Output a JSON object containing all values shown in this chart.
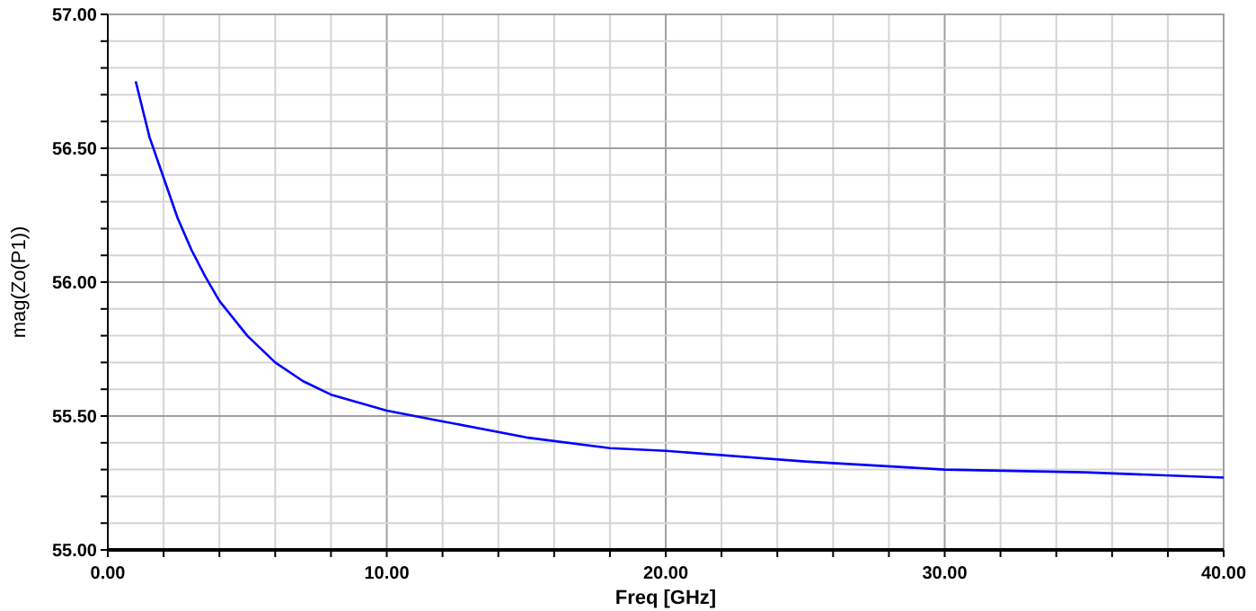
{
  "chart_data": {
    "type": "line",
    "xlabel": "Freq [GHz]",
    "ylabel": "mag(Zo(P1))",
    "x": [
      1,
      1.5,
      2,
      2.5,
      3,
      3.5,
      4,
      5,
      6,
      7,
      8,
      10,
      12,
      15,
      18,
      20,
      25,
      30,
      35,
      40
    ],
    "series": [
      {
        "color": "#0000ff",
        "values": [
          56.75,
          56.54,
          56.39,
          56.24,
          56.12,
          56.02,
          55.93,
          55.8,
          55.7,
          55.63,
          55.58,
          55.52,
          55.48,
          55.42,
          55.38,
          55.37,
          55.33,
          55.3,
          55.29,
          55.27
        ]
      }
    ],
    "xlim": [
      0,
      40
    ],
    "xticks": [
      {
        "value": 0,
        "label": "0.00"
      },
      {
        "value": 2,
        "label": null
      },
      {
        "value": 4,
        "label": null
      },
      {
        "value": 6,
        "label": null
      },
      {
        "value": 8,
        "label": null
      },
      {
        "value": 10,
        "label": "10.00"
      },
      {
        "value": 12,
        "label": null
      },
      {
        "value": 14,
        "label": null
      },
      {
        "value": 16,
        "label": null
      },
      {
        "value": 18,
        "label": null
      },
      {
        "value": 20,
        "label": "20.00"
      },
      {
        "value": 22,
        "label": null
      },
      {
        "value": 24,
        "label": null
      },
      {
        "value": 26,
        "label": null
      },
      {
        "value": 28,
        "label": null
      },
      {
        "value": 30,
        "label": "30.00"
      },
      {
        "value": 32,
        "label": null
      },
      {
        "value": 34,
        "label": null
      },
      {
        "value": 36,
        "label": null
      },
      {
        "value": 38,
        "label": null
      },
      {
        "value": 40,
        "label": "40.00"
      }
    ],
    "ylim": [
      55,
      57
    ],
    "yticks": [
      {
        "value": 55,
        "label": "55.00"
      },
      {
        "value": 55.1,
        "label": null
      },
      {
        "value": 55.2,
        "label": null
      },
      {
        "value": 55.3,
        "label": null
      },
      {
        "value": 55.4,
        "label": null
      },
      {
        "value": 55.5,
        "label": "55.50"
      },
      {
        "value": 55.6,
        "label": null
      },
      {
        "value": 55.7,
        "label": null
      },
      {
        "value": 55.8,
        "label": null
      },
      {
        "value": 55.9,
        "label": null
      },
      {
        "value": 56,
        "label": "56.00"
      },
      {
        "value": 56.1,
        "label": null
      },
      {
        "value": 56.2,
        "label": null
      },
      {
        "value": 56.3,
        "label": null
      },
      {
        "value": 56.4,
        "label": null
      },
      {
        "value": 56.5,
        "label": "56.50"
      },
      {
        "value": 56.6,
        "label": null
      },
      {
        "value": 56.7,
        "label": null
      },
      {
        "value": 56.8,
        "label": null
      },
      {
        "value": 56.9,
        "label": null
      },
      {
        "value": 57,
        "label": "57.00"
      }
    ],
    "grid": true,
    "marker": "none",
    "line_style": "solid"
  }
}
